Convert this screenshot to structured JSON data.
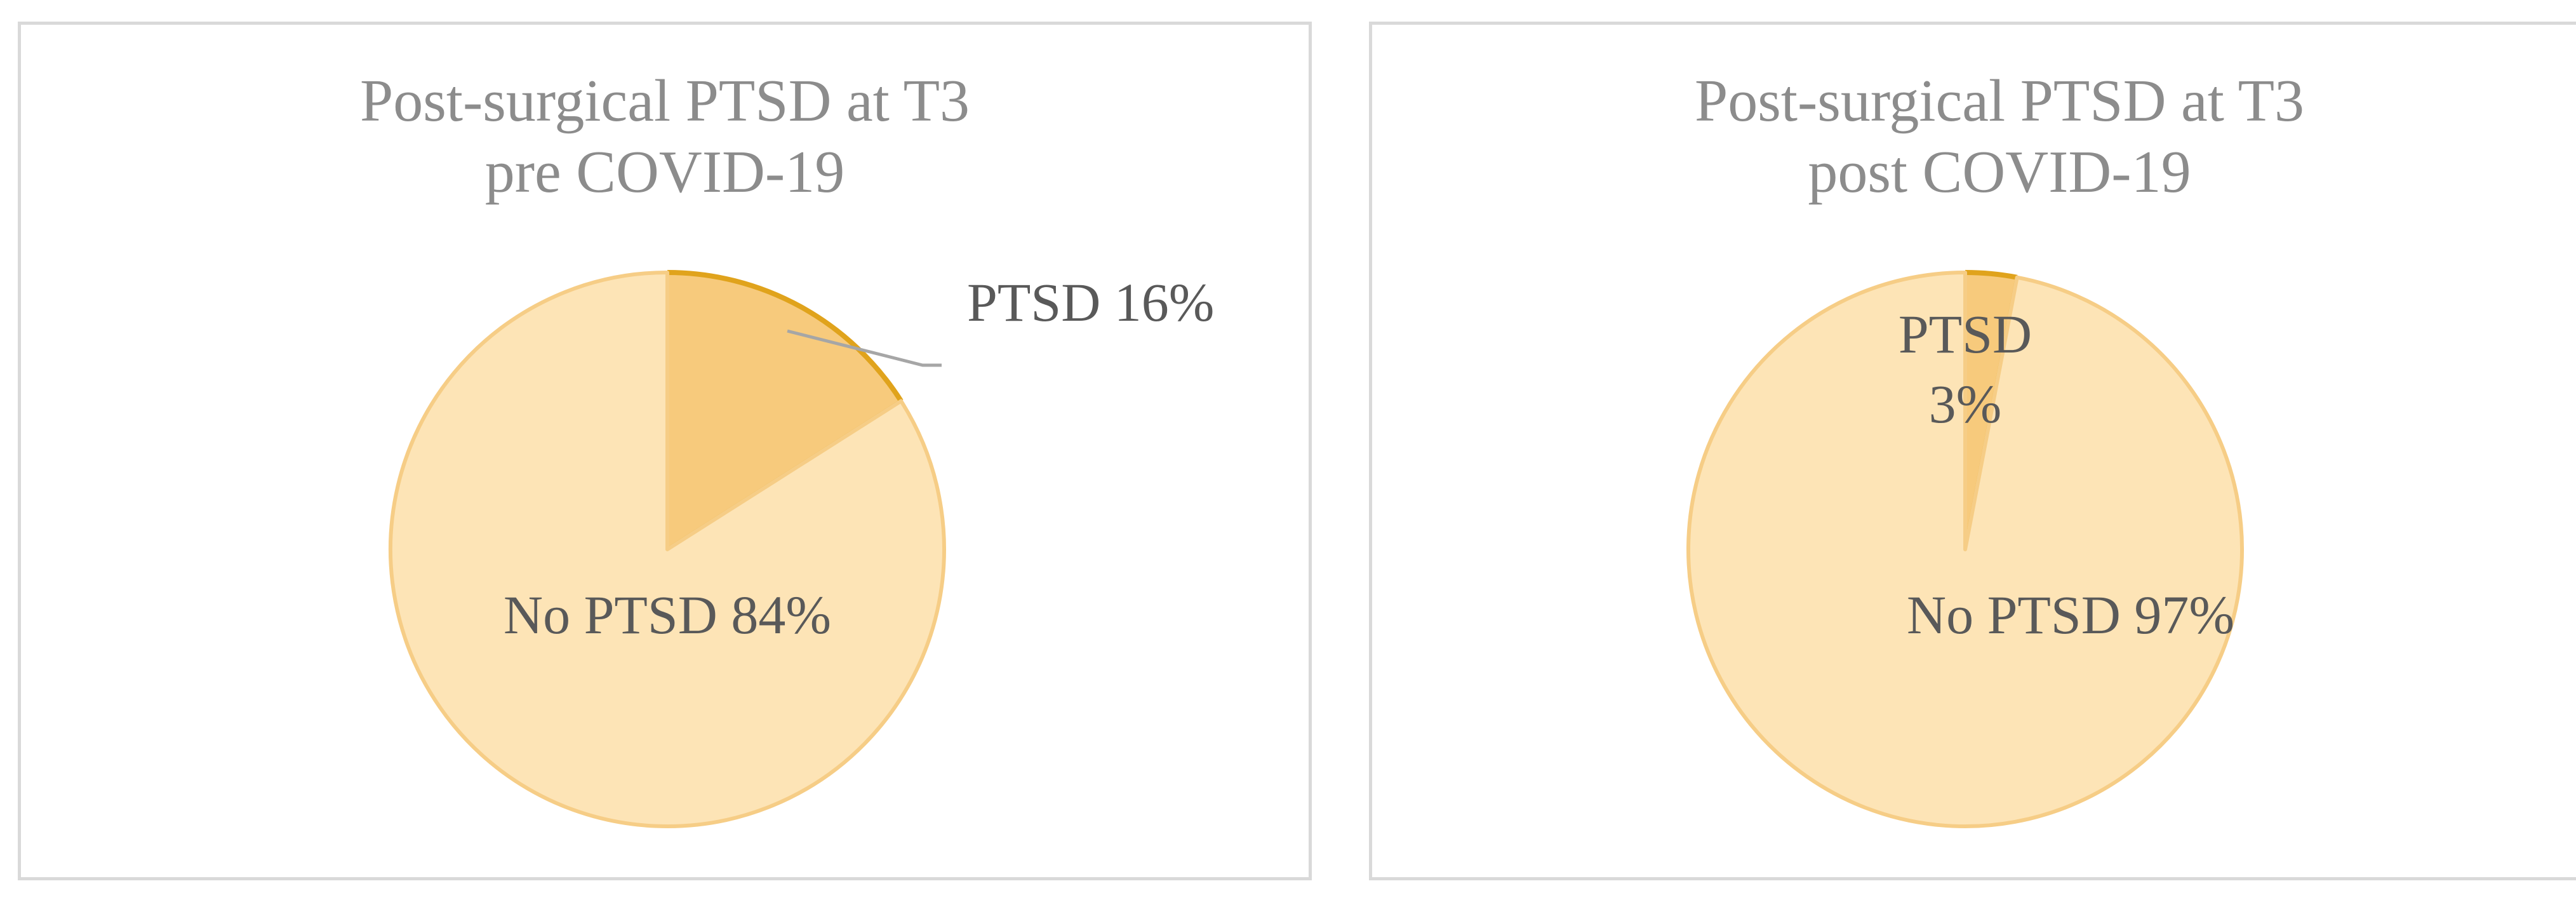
{
  "chart_data": [
    {
      "type": "pie",
      "title": [
        "Post-surgical PTSD at T3",
        "pre COVID-19"
      ],
      "slices": [
        {
          "label": "PTSD",
          "value": 16,
          "display": "16%",
          "color": "#f7ca7c",
          "stroke": "#e0a31c"
        },
        {
          "label": "No PTSD",
          "value": 84,
          "display": "84%",
          "color": "#fde4b6",
          "stroke": "#f6cd86"
        }
      ]
    },
    {
      "type": "pie",
      "title": [
        "Post-surgical PTSD at T3",
        "post COVID-19"
      ],
      "slices": [
        {
          "label": "PTSD",
          "value": 3,
          "display": "3%",
          "color": "#f7ca7c",
          "stroke": "#e0a31c"
        },
        {
          "label": "No PTSD",
          "value": 97,
          "display": "97%",
          "color": "#fde4b6",
          "stroke": "#f6cd86"
        }
      ]
    }
  ]
}
